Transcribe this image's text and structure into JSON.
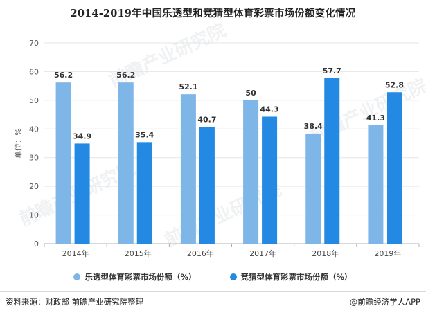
{
  "title": "2014-2019年中国乐透型和竞猜型体育彩票市场份额变化情况",
  "source_text": "资料来源：财政部 前瞻产业研究院整理",
  "brand_text": "@前瞻经济学人APP",
  "watermark_text": "前瞻产业研究院",
  "chart_data": {
    "type": "bar",
    "categories": [
      "2014年",
      "2015年",
      "2016年",
      "2017年",
      "2018年",
      "2019年"
    ],
    "series": [
      {
        "name": "乐透型体育彩票市场份额（%）",
        "color": "#7fb6e8",
        "values": [
          56.2,
          56.2,
          52.1,
          50,
          38.4,
          41.3
        ]
      },
      {
        "name": "竞猜型体育彩票市场份额（%）",
        "color": "#2389e3",
        "values": [
          34.9,
          35.4,
          40.7,
          44.3,
          57.7,
          52.8
        ]
      }
    ],
    "ylabel": "单位：%",
    "ylim": [
      0,
      70
    ],
    "yticks": [
      0,
      10,
      20,
      30,
      40,
      50,
      60,
      70
    ],
    "grid": true,
    "legend_position": "bottom"
  }
}
